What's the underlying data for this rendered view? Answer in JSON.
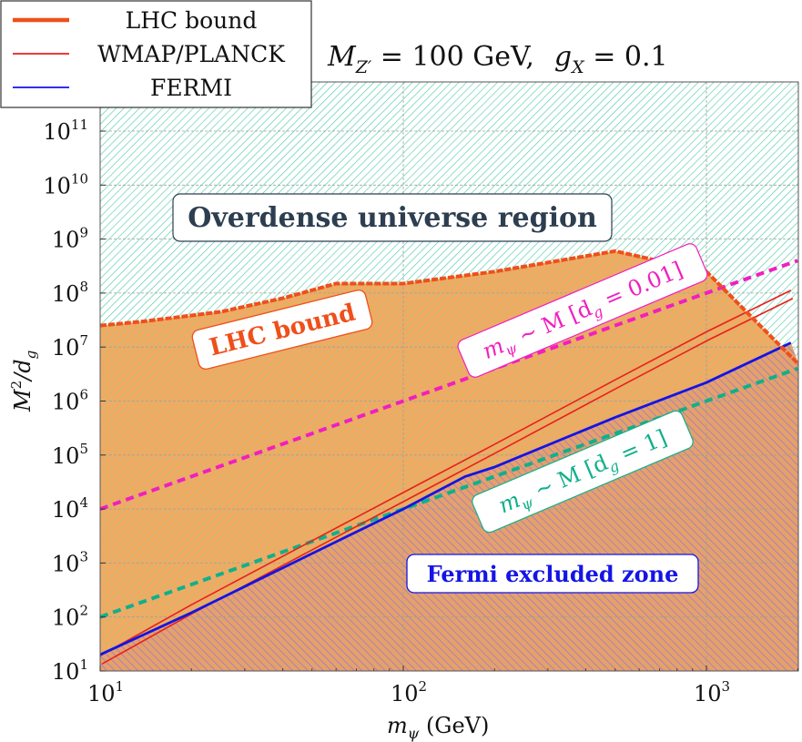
{
  "chart_data": {
    "type": "line",
    "title": "M_{Z'} = 100 GeV,   g_X = 0.1",
    "title_parts": {
      "mz_sym": "M",
      "mz_sub": "Z′",
      "mz_val": " = 100 GeV,",
      "gx_sym": "g",
      "gx_sub": "X",
      "gx_val": " = 0.1"
    },
    "xlabel": "m_ψ (GeV)",
    "xlabel_parts": {
      "sym": "m",
      "sub": "ψ",
      "rest": " (GeV)"
    },
    "ylabel": "M²/d_g",
    "ylabel_parts": {
      "sym": "M",
      "sup": "2",
      "rest": "/d",
      "sub": "g"
    },
    "x_scale": "log",
    "y_scale": "log",
    "xlim": [
      10,
      2000
    ],
    "ylim": [
      10,
      1000000000000.0
    ],
    "x_ticks": [
      {
        "value": 10,
        "base": "10",
        "exp": "1"
      },
      {
        "value": 100,
        "base": "10",
        "exp": "2"
      },
      {
        "value": 1000,
        "base": "10",
        "exp": "3"
      }
    ],
    "y_ticks": [
      {
        "value": 10,
        "base": "10",
        "exp": "1"
      },
      {
        "value": 100,
        "base": "10",
        "exp": "2"
      },
      {
        "value": 1000,
        "base": "10",
        "exp": "3"
      },
      {
        "value": 10000,
        "base": "10",
        "exp": "4"
      },
      {
        "value": 100000,
        "base": "10",
        "exp": "5"
      },
      {
        "value": 1000000,
        "base": "10",
        "exp": "6"
      },
      {
        "value": 10000000,
        "base": "10",
        "exp": "7"
      },
      {
        "value": 100000000,
        "base": "10",
        "exp": "8"
      },
      {
        "value": 1000000000,
        "base": "10",
        "exp": "9"
      },
      {
        "value": 10000000000,
        "base": "10",
        "exp": "10"
      },
      {
        "value": 100000000000,
        "base": "10",
        "exp": "11"
      }
    ],
    "grid": true,
    "legend_position": "top-left",
    "colors": {
      "lhc": "#ef4f1a",
      "wmap": "#e8201c",
      "fermi": "#1414e6",
      "dg001": "#f01fc0",
      "dg1": "#10b08a",
      "overdense_hatch": "#45c9a5",
      "lhc_fill": "#f2a960",
      "fermi_hatch": "#8f78d8",
      "region_text": "#2c3e50"
    },
    "series": [
      {
        "name": "LHC bound",
        "style": "thick",
        "x": [
          10,
          14,
          25,
          40,
          60,
          100,
          200,
          500,
          1000,
          2000
        ],
        "y": [
          25000000.0,
          30000000.0,
          45000000.0,
          80000000.0,
          150000000.0,
          150000000.0,
          250000000.0,
          600000000.0,
          250000000.0,
          5000000.0
        ]
      },
      {
        "name": "WMAP/PLANCK",
        "style": "double",
        "x": [
          10,
          20,
          50,
          100,
          200,
          500,
          1000,
          1900
        ],
        "y": [
          17,
          150,
          2300,
          18000,
          140000.0,
          2200000.0,
          17000000.0,
          100000000.0
        ]
      },
      {
        "name": "FERMI",
        "style": "solid",
        "x": [
          10,
          20,
          50,
          100,
          160,
          200,
          500,
          1000,
          1900
        ],
        "y": [
          20,
          120,
          1500,
          10000,
          40000,
          60000,
          500000.0,
          2200000.0,
          12000000.0
        ]
      }
    ],
    "guides": [
      {
        "label": "m_ψ ~ M [d_g = 0.01]",
        "label_parts": {
          "sym": "m",
          "sub": "ψ",
          "mid": " ∼ M [d",
          "sub2": "g",
          "end": " = 0.01]"
        },
        "x": [
          10,
          2000
        ],
        "y": [
          10000,
          400000000.0
        ]
      },
      {
        "label": "m_ψ ~ M [d_g = 1]",
        "label_parts": {
          "sym": "m",
          "sub": "ψ",
          "mid": " ∼ M [d",
          "sub2": "g",
          "end": " = 1]"
        },
        "x": [
          10,
          2000
        ],
        "y": [
          100,
          4000000.0
        ]
      }
    ],
    "annotations": {
      "overdense": "Overdense universe region",
      "lhc": "LHC bound",
      "fermi": "Fermi excluded zone"
    }
  }
}
